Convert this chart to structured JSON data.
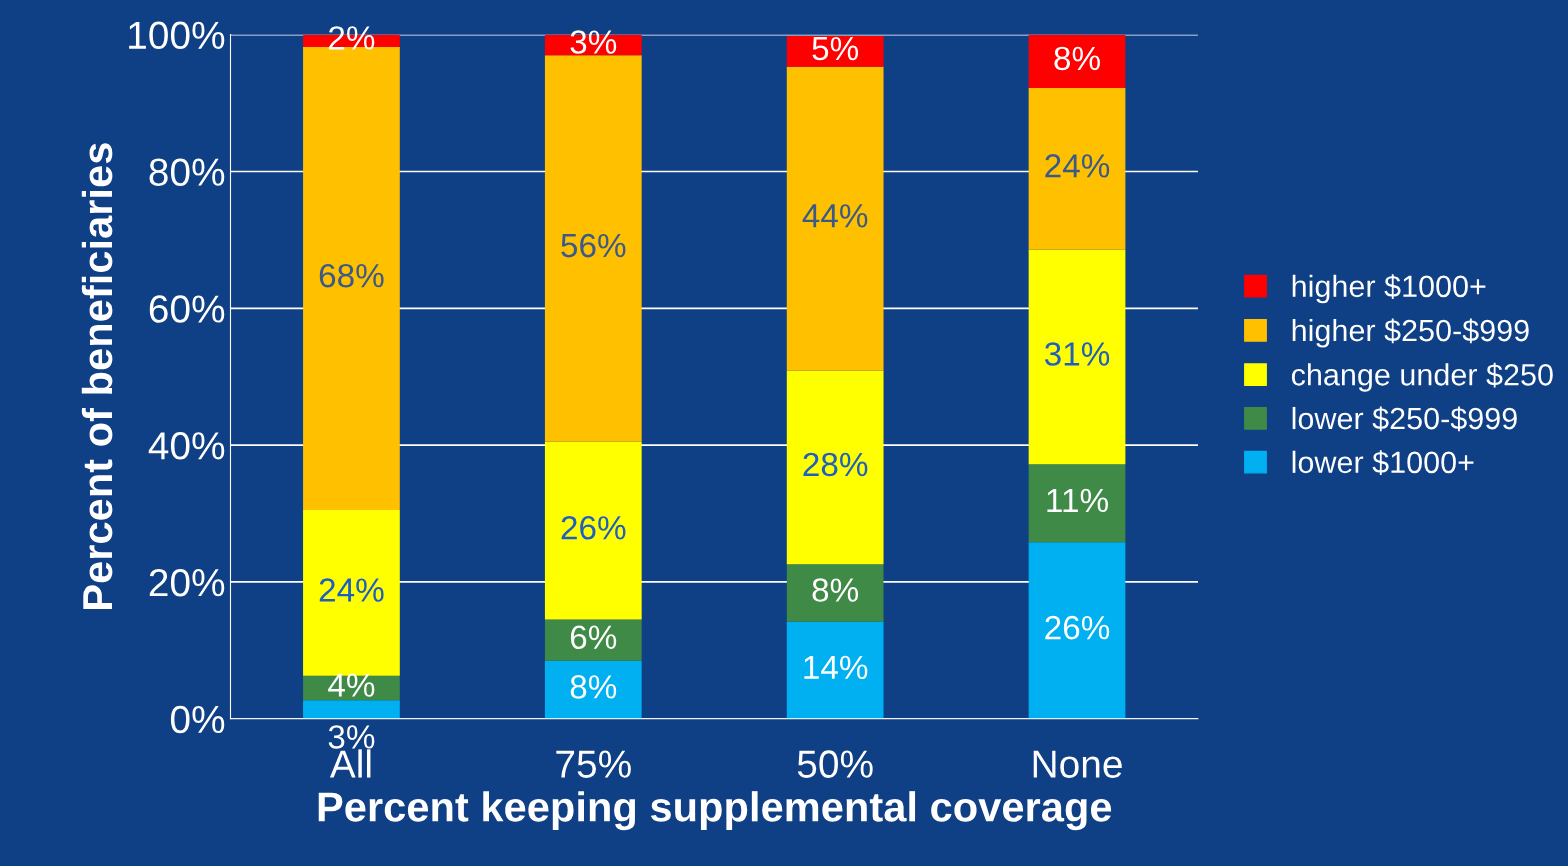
{
  "chart_data": {
    "type": "bar",
    "stacked": true,
    "xlabel": "Percent keeping supplemental coverage",
    "ylabel": "Percent of beneficiaries",
    "categories": [
      "All",
      "75%",
      "50%",
      "None"
    ],
    "series": [
      {
        "name": "lower $1000+",
        "color": "#00b0f0",
        "values": [
          2.7,
          8.5,
          14.2,
          25.8
        ],
        "value_labels": [
          "3%",
          "8%",
          "14%",
          "26%"
        ]
      },
      {
        "name": "lower $250-$999",
        "color": "#3f8a47",
        "values": [
          3.6,
          6,
          8.4,
          11.4
        ],
        "value_labels": [
          "4%",
          "6%",
          "8%",
          "11%"
        ]
      },
      {
        "name": "change under $250",
        "color": "#ffff00",
        "values": [
          24.2,
          26,
          28.3,
          31.4
        ],
        "value_labels": [
          "24%",
          "26%",
          "28%",
          "31%"
        ]
      },
      {
        "name": "higher $250-$999",
        "color": "#ffc000",
        "values": [
          67.7,
          56.5,
          44.4,
          23.6
        ],
        "value_labels": [
          "68%",
          "56%",
          "44%",
          "24%"
        ]
      },
      {
        "name": "higher $1000+",
        "color": "#ff0000",
        "values": [
          1.8,
          3,
          4.5,
          7.8
        ],
        "value_labels": [
          "2%",
          "3%",
          "5%",
          "8%"
        ]
      }
    ],
    "ylim": [
      0,
      100
    ],
    "yticks": [
      {
        "value": 0,
        "label": "0%"
      },
      {
        "value": 20,
        "label": "20%"
      },
      {
        "value": 40,
        "label": "40%"
      },
      {
        "value": 60,
        "label": "60%"
      },
      {
        "value": 80,
        "label": "80%"
      },
      {
        "value": 100,
        "label": "100%"
      }
    ],
    "grid": "y",
    "legend": "right"
  }
}
